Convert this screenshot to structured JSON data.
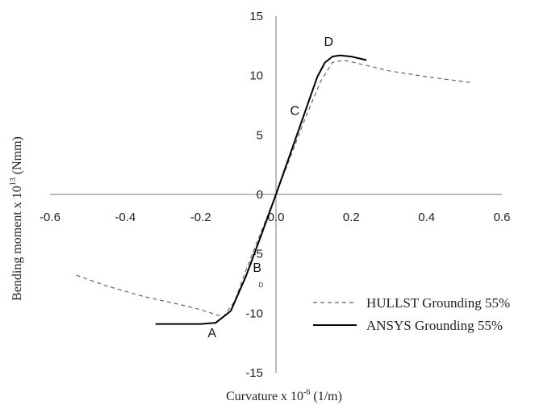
{
  "chart_data": {
    "type": "line",
    "title": "",
    "xlabel": "Curvature x 10",
    "xlabel_sup": "-6",
    "xlabel_unit": " (1/m)",
    "ylabel": "Bending moment x 10",
    "ylabel_sup": "13",
    "ylabel_unit": "  (Nmm)",
    "xlim": [
      -0.6,
      0.6
    ],
    "ylim": [
      -15,
      15
    ],
    "x_ticks": [
      -0.6,
      -0.4,
      -0.2,
      0.0,
      0.2,
      0.4,
      0.6
    ],
    "x_tick_labels": [
      "-0.6",
      "-0.4",
      "-0.2",
      "0.0",
      "0.2",
      "0.4",
      "0.6"
    ],
    "y_ticks": [
      -15,
      -10,
      -5,
      0,
      5,
      10,
      15
    ],
    "y_tick_labels": [
      "-15",
      "-10",
      "-5",
      "0",
      "5",
      "10",
      "15"
    ],
    "grid": false,
    "legend_position": "bottom-right",
    "series": [
      {
        "name": "HULLST Grounding 55%",
        "style": "dashed",
        "color": "#666666",
        "x": [
          -0.53,
          -0.45,
          -0.35,
          -0.25,
          -0.2,
          -0.16,
          -0.14,
          -0.11,
          -0.08,
          -0.04,
          0.0,
          0.04,
          0.08,
          0.12,
          0.15,
          0.18,
          0.22,
          0.3,
          0.4,
          0.52
        ],
        "y": [
          -6.8,
          -7.7,
          -8.6,
          -9.3,
          -9.7,
          -10.1,
          -10.3,
          -9.0,
          -6.4,
          -3.2,
          0.0,
          3.3,
          6.6,
          9.6,
          11.1,
          11.3,
          11.0,
          10.4,
          9.9,
          9.4
        ]
      },
      {
        "name": "ANSYS Grounding 55%",
        "style": "solid",
        "color": "#000000",
        "x": [
          -0.32,
          -0.25,
          -0.2,
          -0.16,
          -0.14,
          -0.12,
          -0.08,
          -0.04,
          0.0,
          0.04,
          0.08,
          0.11,
          0.13,
          0.15,
          0.17,
          0.2,
          0.24
        ],
        "y": [
          -10.9,
          -10.9,
          -10.9,
          -10.8,
          -10.3,
          -9.8,
          -6.9,
          -3.5,
          0.0,
          3.6,
          7.2,
          9.9,
          11.1,
          11.6,
          11.7,
          11.6,
          11.3
        ]
      }
    ],
    "annotations": [
      {
        "text": "A",
        "x": -0.17,
        "y": -12.0
      },
      {
        "text": "B",
        "x": -0.05,
        "y": -6.5
      },
      {
        "text": "D",
        "x": -0.04,
        "y": -7.8,
        "small": true
      },
      {
        "text": "C",
        "x": 0.05,
        "y": 6.7
      },
      {
        "text": "D",
        "x": 0.14,
        "y": 12.5
      }
    ]
  }
}
